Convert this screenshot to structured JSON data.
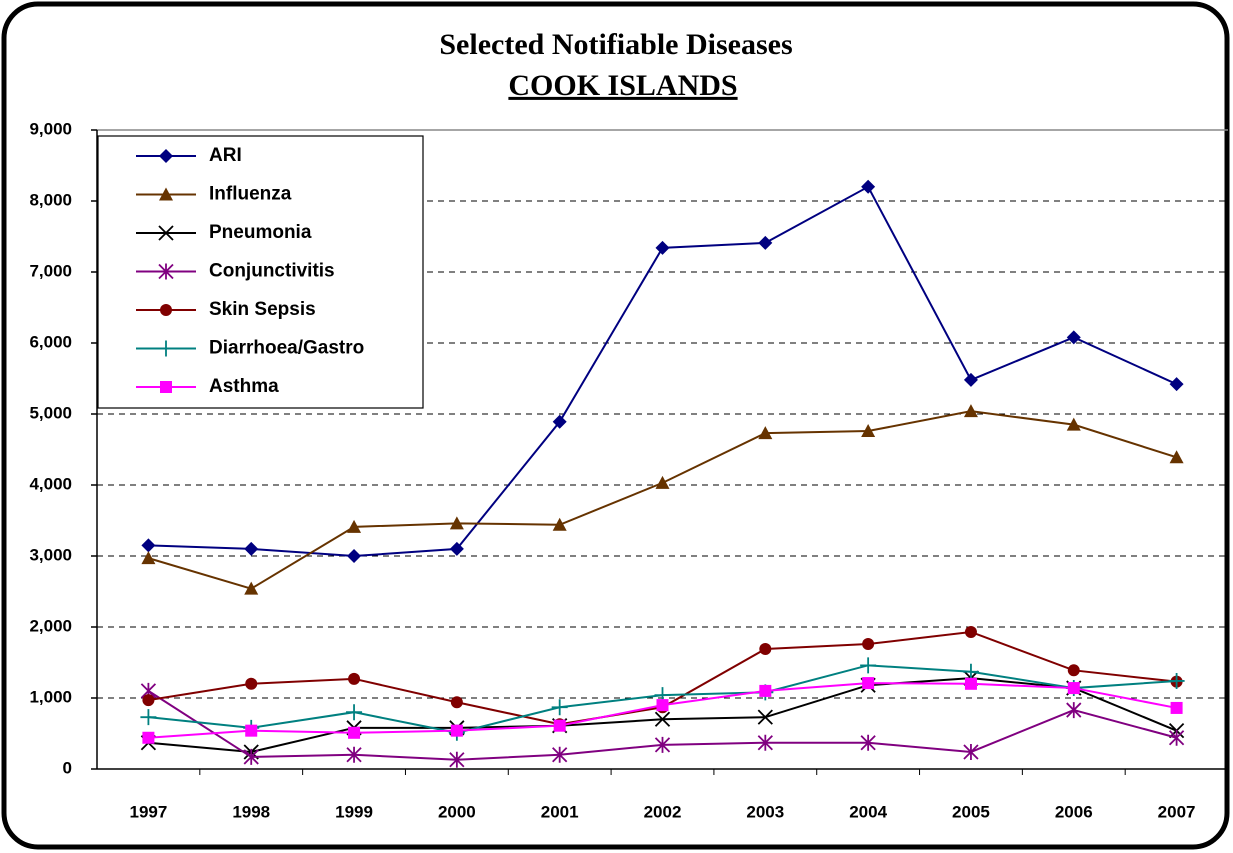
{
  "chart_data": {
    "type": "line",
    "title": "Selected Notifiable Diseases",
    "subtitle": "COOK ISLANDS",
    "categories": [
      "1997",
      "1998",
      "1999",
      "2000",
      "2001",
      "2002",
      "2003",
      "2004",
      "2005",
      "2006",
      "2007"
    ],
    "series": [
      {
        "name": "ARI",
        "color": "#000080",
        "marker": "diamond",
        "values": [
          3150,
          3100,
          3000,
          3100,
          4890,
          7340,
          7410,
          8200,
          5480,
          6080,
          5420
        ]
      },
      {
        "name": "Influenza",
        "color": "#663300",
        "marker": "triangle",
        "values": [
          2970,
          2540,
          3410,
          3460,
          3440,
          4030,
          4730,
          4760,
          5040,
          4850,
          4390
        ]
      },
      {
        "name": "Pneumonia",
        "color": "#000000",
        "marker": "x",
        "values": [
          370,
          240,
          580,
          580,
          610,
          700,
          730,
          1180,
          1280,
          1140,
          540
        ]
      },
      {
        "name": "Conjunctivitis",
        "color": "#800080",
        "marker": "asterisk",
        "values": [
          1100,
          170,
          200,
          130,
          200,
          340,
          370,
          370,
          240,
          830,
          440
        ]
      },
      {
        "name": "Skin Sepsis",
        "color": "#800000",
        "marker": "circle",
        "values": [
          970,
          1200,
          1270,
          940,
          630,
          870,
          1690,
          1760,
          1930,
          1390,
          1230
        ]
      },
      {
        "name": "Diarrhoea/Gastro",
        "color": "#008080",
        "marker": "plus",
        "values": [
          730,
          580,
          800,
          510,
          870,
          1040,
          1080,
          1460,
          1370,
          1140,
          1240
        ]
      },
      {
        "name": "Asthma",
        "color": "#FF00FF",
        "marker": "square",
        "values": [
          440,
          540,
          510,
          540,
          610,
          900,
          1100,
          1210,
          1200,
          1140,
          860
        ]
      }
    ],
    "ylim": [
      0,
      9000
    ],
    "yticks": [
      0,
      {
        "value": 1000,
        "label": "1,000"
      },
      {
        "value": 2000,
        "label": "2,000"
      },
      {
        "value": 3000,
        "label": "3,000"
      },
      {
        "value": 4000,
        "label": "4,000"
      },
      {
        "value": 5000,
        "label": "5,000"
      },
      {
        "value": 6000,
        "label": "6,000"
      },
      {
        "value": 7000,
        "label": "7,000"
      },
      {
        "value": 8000,
        "label": "8,000"
      },
      {
        "value": 9000,
        "label": "9,000"
      }
    ],
    "grid": true,
    "legend": "upper left"
  }
}
